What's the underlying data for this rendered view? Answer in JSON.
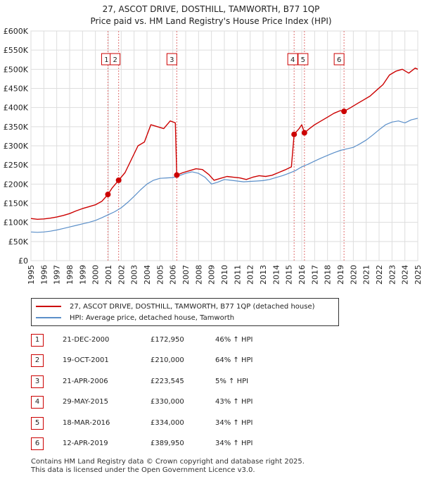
{
  "title_line1": "27, ASCOT DRIVE, DOSTHILL, TAMWORTH, B77 1QP",
  "title_line2": "Price paid vs. HM Land Registry's House Price Index (HPI)",
  "legend": {
    "property_label": "27, ASCOT DRIVE, DOSTHILL, TAMWORTH, B77 1QP (detached house)",
    "hpi_label": "HPI: Average price, detached house, Tamworth"
  },
  "sales": [
    {
      "n": "1",
      "date": "21-DEC-2000",
      "price": "£172,950",
      "hpi": "46% ↑ HPI"
    },
    {
      "n": "2",
      "date": "19-OCT-2001",
      "price": "£210,000",
      "hpi": "64% ↑ HPI"
    },
    {
      "n": "3",
      "date": "21-APR-2006",
      "price": "£223,545",
      "hpi": "5% ↑ HPI"
    },
    {
      "n": "4",
      "date": "29-MAY-2015",
      "price": "£330,000",
      "hpi": "43% ↑ HPI"
    },
    {
      "n": "5",
      "date": "18-MAR-2016",
      "price": "£334,000",
      "hpi": "34% ↑ HPI"
    },
    {
      "n": "6",
      "date": "12-APR-2019",
      "price": "£389,950",
      "hpi": "34% ↑ HPI"
    }
  ],
  "footer_line1": "Contains HM Land Registry data © Crown copyright and database right 2025.",
  "footer_line2": "This data is licensed under the Open Government Licence v3.0.",
  "colors": {
    "property": "#cc0000",
    "hpi": "#5b8fc9",
    "grid": "#dddddd",
    "marker_line": "#e07070"
  },
  "chart_data": {
    "type": "line",
    "title": "27, ASCOT DRIVE, DOSTHILL, TAMWORTH, B77 1QP",
    "subtitle": "Price paid vs. HM Land Registry's House Price Index (HPI)",
    "xlim": [
      1995,
      2025
    ],
    "ylim": [
      0,
      600000
    ],
    "x_ticks": [
      "1995",
      "1996",
      "1997",
      "1998",
      "1999",
      "2000",
      "2001",
      "2002",
      "2003",
      "2004",
      "2005",
      "2006",
      "2007",
      "2008",
      "2009",
      "2010",
      "2011",
      "2012",
      "2013",
      "2014",
      "2015",
      "2016",
      "2017",
      "2018",
      "2019",
      "2020",
      "2021",
      "2022",
      "2023",
      "2024",
      "2025"
    ],
    "y_ticks": [
      {
        "v": 0,
        "label": "£0"
      },
      {
        "v": 50000,
        "label": "£50K"
      },
      {
        "v": 100000,
        "label": "£100K"
      },
      {
        "v": 150000,
        "label": "£150K"
      },
      {
        "v": 200000,
        "label": "£200K"
      },
      {
        "v": 250000,
        "label": "£250K"
      },
      {
        "v": 300000,
        "label": "£300K"
      },
      {
        "v": 350000,
        "label": "£350K"
      },
      {
        "v": 400000,
        "label": "£400K"
      },
      {
        "v": 450000,
        "label": "£450K"
      },
      {
        "v": 500000,
        "label": "£500K"
      },
      {
        "v": 550000,
        "label": "£550K"
      },
      {
        "v": 600000,
        "label": "£600K"
      }
    ],
    "grid": true,
    "legend_position": "bottom",
    "series": [
      {
        "name": "27, ASCOT DRIVE, DOSTHILL, TAMWORTH, B77 1QP (detached house)",
        "points": [
          [
            1995,
            110000
          ],
          [
            1995.5,
            108000
          ],
          [
            1996,
            109000
          ],
          [
            1996.5,
            111000
          ],
          [
            1997,
            114000
          ],
          [
            1997.5,
            118000
          ],
          [
            1998,
            123000
          ],
          [
            1998.5,
            130000
          ],
          [
            1999,
            136000
          ],
          [
            1999.5,
            141000
          ],
          [
            2000,
            146000
          ],
          [
            2000.5,
            155000
          ],
          [
            2000.97,
            172950
          ],
          [
            2001.3,
            190000
          ],
          [
            2001.8,
            210000
          ],
          [
            2002.3,
            230000
          ],
          [
            2002.8,
            265000
          ],
          [
            2003.3,
            300000
          ],
          [
            2003.8,
            310000
          ],
          [
            2004.3,
            355000
          ],
          [
            2004.8,
            350000
          ],
          [
            2005.3,
            345000
          ],
          [
            2005.8,
            365000
          ],
          [
            2006.2,
            360000
          ],
          [
            2006.31,
            223545
          ],
          [
            2006.8,
            230000
          ],
          [
            2007.3,
            235000
          ],
          [
            2007.8,
            240000
          ],
          [
            2008.3,
            238000
          ],
          [
            2008.8,
            225000
          ],
          [
            2009.2,
            210000
          ],
          [
            2009.7,
            215000
          ],
          [
            2010.2,
            220000
          ],
          [
            2010.7,
            218000
          ],
          [
            2011.2,
            216000
          ],
          [
            2011.7,
            212000
          ],
          [
            2012.2,
            218000
          ],
          [
            2012.7,
            222000
          ],
          [
            2013.2,
            220000
          ],
          [
            2013.7,
            223000
          ],
          [
            2014.2,
            230000
          ],
          [
            2014.7,
            237000
          ],
          [
            2015.2,
            245000
          ],
          [
            2015.41,
            330000
          ],
          [
            2015.8,
            345000
          ],
          [
            2016.0,
            355000
          ],
          [
            2016.21,
            334000
          ],
          [
            2016.6,
            345000
          ],
          [
            2017.0,
            355000
          ],
          [
            2017.5,
            365000
          ],
          [
            2018.0,
            375000
          ],
          [
            2018.5,
            385000
          ],
          [
            2019.0,
            392000
          ],
          [
            2019.28,
            389950
          ],
          [
            2019.8,
            400000
          ],
          [
            2020.3,
            410000
          ],
          [
            2020.8,
            420000
          ],
          [
            2021.3,
            430000
          ],
          [
            2021.8,
            445000
          ],
          [
            2022.3,
            460000
          ],
          [
            2022.8,
            485000
          ],
          [
            2023.3,
            495000
          ],
          [
            2023.8,
            500000
          ],
          [
            2024.3,
            490000
          ],
          [
            2024.8,
            503000
          ],
          [
            2025,
            500000
          ]
        ]
      },
      {
        "name": "HPI: Average price, detached house, Tamworth",
        "points": [
          [
            1995,
            75000
          ],
          [
            1995.5,
            74000
          ],
          [
            1996,
            75000
          ],
          [
            1996.5,
            77000
          ],
          [
            1997,
            80000
          ],
          [
            1997.5,
            84000
          ],
          [
            1998,
            88000
          ],
          [
            1998.5,
            92000
          ],
          [
            1999,
            96000
          ],
          [
            1999.5,
            100000
          ],
          [
            2000,
            105000
          ],
          [
            2000.5,
            112000
          ],
          [
            2001,
            120000
          ],
          [
            2001.5,
            128000
          ],
          [
            2002,
            138000
          ],
          [
            2002.5,
            152000
          ],
          [
            2003,
            168000
          ],
          [
            2003.5,
            185000
          ],
          [
            2004,
            200000
          ],
          [
            2004.5,
            210000
          ],
          [
            2005,
            215000
          ],
          [
            2005.5,
            216000
          ],
          [
            2006,
            217000
          ],
          [
            2006.5,
            222000
          ],
          [
            2007,
            228000
          ],
          [
            2007.5,
            232000
          ],
          [
            2008,
            228000
          ],
          [
            2008.5,
            218000
          ],
          [
            2009,
            200000
          ],
          [
            2009.5,
            205000
          ],
          [
            2010,
            212000
          ],
          [
            2010.5,
            210000
          ],
          [
            2011,
            208000
          ],
          [
            2011.5,
            206000
          ],
          [
            2012,
            207000
          ],
          [
            2012.5,
            208000
          ],
          [
            2013,
            209000
          ],
          [
            2013.5,
            212000
          ],
          [
            2014,
            217000
          ],
          [
            2014.5,
            222000
          ],
          [
            2015,
            228000
          ],
          [
            2015.5,
            235000
          ],
          [
            2016,
            245000
          ],
          [
            2016.5,
            252000
          ],
          [
            2017,
            260000
          ],
          [
            2017.5,
            268000
          ],
          [
            2018,
            275000
          ],
          [
            2018.5,
            282000
          ],
          [
            2019,
            288000
          ],
          [
            2019.5,
            292000
          ],
          [
            2020,
            296000
          ],
          [
            2020.5,
            305000
          ],
          [
            2021,
            315000
          ],
          [
            2021.5,
            328000
          ],
          [
            2022,
            342000
          ],
          [
            2022.5,
            355000
          ],
          [
            2023,
            362000
          ],
          [
            2023.5,
            365000
          ],
          [
            2024,
            360000
          ],
          [
            2024.5,
            368000
          ],
          [
            2025,
            372000
          ]
        ]
      }
    ],
    "sale_markers": [
      {
        "label": "1",
        "x": 2000.97,
        "y": 172950
      },
      {
        "label": "2",
        "x": 2001.8,
        "y": 210000
      },
      {
        "label": "3",
        "x": 2006.31,
        "y": 223545
      },
      {
        "label": "4",
        "x": 2015.41,
        "y": 330000
      },
      {
        "label": "5",
        "x": 2016.21,
        "y": 334000
      },
      {
        "label": "6",
        "x": 2019.28,
        "y": 389950
      }
    ]
  }
}
